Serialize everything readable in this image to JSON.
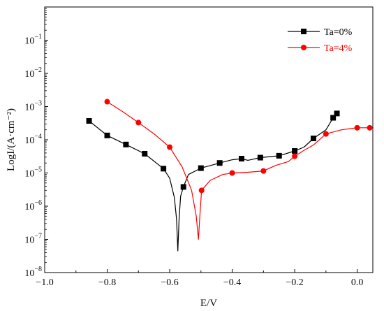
{
  "chart_data": {
    "type": "line",
    "xlabel": "E/V",
    "ylabel": "LogI/(A·cm⁻²)",
    "xlim": [
      -1.0,
      0.05
    ],
    "ylim_exponent": [
      -8,
      0
    ],
    "y_scale": "log",
    "xticks": [
      -1.0,
      -0.8,
      -0.6,
      -0.4,
      -0.2,
      0.0
    ],
    "xtick_labels": [
      "−1.0",
      "−0.8",
      "−0.6",
      "−0.4",
      "−0.2",
      "0.0"
    ],
    "yticks_exponent": [
      -8,
      -7,
      -6,
      -5,
      -4,
      -3,
      -2,
      -1
    ],
    "ytick_base": "10",
    "legend_position": "top-right",
    "series": [
      {
        "name": "Ta=0%",
        "color": "#000000",
        "marker": "square",
        "curve": [
          [
            -0.858,
            0.00037
          ],
          [
            -0.8,
            0.000135
          ],
          [
            -0.74,
            7.2e-05
          ],
          [
            -0.68,
            3.8e-05
          ],
          [
            -0.62,
            1.35e-05
          ],
          [
            -0.6,
            7e-06
          ],
          [
            -0.585,
            1.8e-06
          ],
          [
            -0.578,
            4e-07
          ],
          [
            -0.574,
            4.5e-08
          ],
          [
            -0.57,
            4e-07
          ],
          [
            -0.565,
            2e-06
          ],
          [
            -0.556,
            3.8e-06
          ],
          [
            -0.54,
            9e-06
          ],
          [
            -0.5,
            1.4e-05
          ],
          [
            -0.44,
            2e-05
          ],
          [
            -0.4,
            2.5e-05
          ],
          [
            -0.37,
            2.7e-05
          ],
          [
            -0.35,
            2.4e-05
          ],
          [
            -0.31,
            2.9e-05
          ],
          [
            -0.25,
            3.3e-05
          ],
          [
            -0.2,
            4.6e-05
          ],
          [
            -0.17,
            6e-05
          ],
          [
            -0.14,
            0.00011
          ],
          [
            -0.1,
            0.0002
          ],
          [
            -0.077,
            0.00046
          ],
          [
            -0.065,
            0.00062
          ]
        ],
        "markers": [
          [
            -0.858,
            0.00037
          ],
          [
            -0.8,
            0.000135
          ],
          [
            -0.74,
            7.2e-05
          ],
          [
            -0.68,
            3.8e-05
          ],
          [
            -0.62,
            1.35e-05
          ],
          [
            -0.556,
            3.8e-06
          ],
          [
            -0.5,
            1.4e-05
          ],
          [
            -0.44,
            2e-05
          ],
          [
            -0.37,
            2.7e-05
          ],
          [
            -0.31,
            2.9e-05
          ],
          [
            -0.25,
            3.3e-05
          ],
          [
            -0.2,
            4.6e-05
          ],
          [
            -0.14,
            0.00011
          ],
          [
            -0.077,
            0.00046
          ],
          [
            -0.065,
            0.00062
          ]
        ]
      },
      {
        "name": "Ta=4%",
        "color": "#ff0000",
        "marker": "circle",
        "curve": [
          [
            -0.8,
            0.0014
          ],
          [
            -0.75,
            0.0007
          ],
          [
            -0.7,
            0.00033
          ],
          [
            -0.65,
            0.00015
          ],
          [
            -0.6,
            6e-05
          ],
          [
            -0.56,
            1.5e-05
          ],
          [
            -0.53,
            3e-06
          ],
          [
            -0.515,
            5e-07
          ],
          [
            -0.508,
            1e-07
          ],
          [
            -0.503,
            6e-07
          ],
          [
            -0.498,
            3e-06
          ],
          [
            -0.47,
            6e-06
          ],
          [
            -0.43,
            9e-06
          ],
          [
            -0.4,
            1e-05
          ],
          [
            -0.35,
            1.05e-05
          ],
          [
            -0.3,
            1.15e-05
          ],
          [
            -0.26,
            1.7e-05
          ],
          [
            -0.22,
            2.2e-05
          ],
          [
            -0.2,
            3.2e-05
          ],
          [
            -0.17,
            4.8e-05
          ],
          [
            -0.14,
            7e-05
          ],
          [
            -0.1,
            0.00015
          ],
          [
            -0.05,
            0.0002
          ],
          [
            0.0,
            0.00023
          ],
          [
            0.04,
            0.00023
          ]
        ],
        "markers": [
          [
            -0.8,
            0.0014
          ],
          [
            -0.7,
            0.00033
          ],
          [
            -0.6,
            6e-05
          ],
          [
            -0.498,
            3e-06
          ],
          [
            -0.4,
            1e-05
          ],
          [
            -0.3,
            1.15e-05
          ],
          [
            -0.2,
            3.2e-05
          ],
          [
            -0.1,
            0.00015
          ],
          [
            0.0,
            0.00023
          ],
          [
            0.04,
            0.00023
          ]
        ]
      }
    ]
  }
}
